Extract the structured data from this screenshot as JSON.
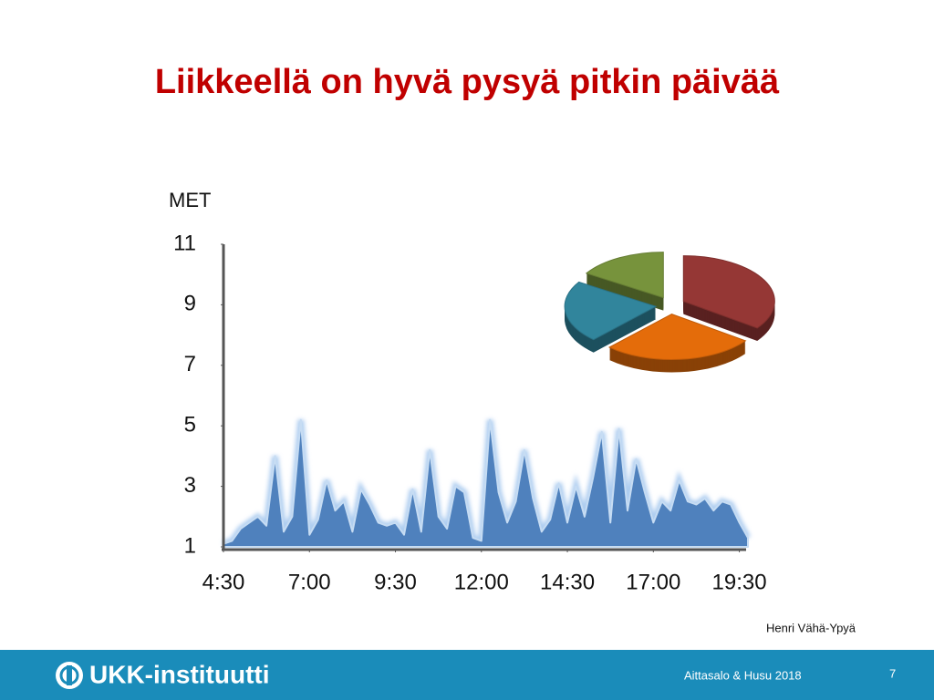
{
  "slide": {
    "title": "Liikkeellä on hyvä pysyä pitkin päivää",
    "credit": "Henri Vähä-Ypyä",
    "footer": {
      "logo": "UKK-instituutti",
      "citation": "Aittasalo & Husu 2018",
      "page": 7
    }
  },
  "chart_data": [
    {
      "type": "area",
      "y_label": "MET",
      "color": "#4f81bd",
      "x": [
        4.5,
        4.75,
        5,
        5.25,
        5.5,
        5.75,
        6,
        6.25,
        6.5,
        6.75,
        7,
        7.25,
        7.5,
        7.75,
        8,
        8.25,
        8.5,
        8.75,
        9,
        9.25,
        9.5,
        9.75,
        10,
        10.25,
        10.5,
        10.75,
        11,
        11.25,
        11.5,
        11.75,
        12,
        12.25,
        12.5,
        12.75,
        13,
        13.25,
        13.5,
        13.75,
        14,
        14.25,
        14.5,
        14.75,
        15,
        15.25,
        15.5,
        15.75,
        16,
        16.25,
        16.5,
        16.75,
        17,
        17.25,
        17.5,
        17.75,
        18,
        18.25,
        18.5,
        18.75,
        19,
        19.25,
        19.5,
        19.75
      ],
      "values": [
        1.1,
        1.2,
        1.6,
        1.8,
        2.0,
        1.7,
        4.0,
        1.5,
        2.0,
        5.2,
        1.4,
        1.9,
        3.2,
        2.2,
        2.5,
        1.5,
        2.9,
        2.4,
        1.8,
        1.7,
        1.8,
        1.4,
        2.9,
        1.5,
        4.2,
        2.0,
        1.6,
        3.0,
        2.8,
        1.3,
        1.2,
        5.2,
        2.8,
        1.8,
        2.5,
        4.2,
        2.6,
        1.5,
        1.9,
        3.1,
        1.8,
        3.0,
        2.0,
        3.3,
        4.8,
        1.8,
        4.9,
        2.2,
        3.9,
        2.8,
        1.8,
        2.5,
        2.2,
        3.2,
        2.5,
        2.4,
        2.6,
        2.2,
        2.5,
        2.4,
        1.8,
        1.3
      ],
      "xlim": [
        4.5,
        19.75
      ],
      "xticks": [
        {
          "value": 4.5,
          "label": "4:30"
        },
        {
          "value": 7,
          "label": "7:00"
        },
        {
          "value": 9.5,
          "label": "9:30"
        },
        {
          "value": 12,
          "label": "12:00"
        },
        {
          "value": 14.5,
          "label": "14:30"
        },
        {
          "value": 17,
          "label": "17:00"
        },
        {
          "value": 19.5,
          "label": "19:30"
        }
      ],
      "ylim": [
        1,
        11
      ],
      "yticks": [
        1,
        3,
        5,
        7,
        9,
        11
      ]
    },
    {
      "type": "pie",
      "values": [
        35,
        27,
        22,
        16
      ],
      "colors": [
        "#953735",
        "#e46c0a",
        "#31859c",
        "#77933c"
      ]
    }
  ]
}
